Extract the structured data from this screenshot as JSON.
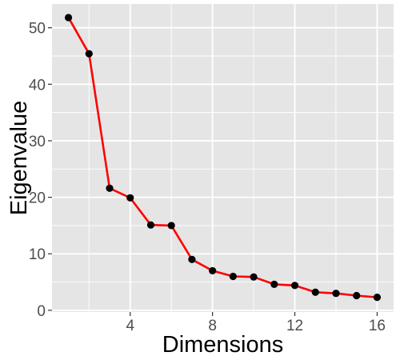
{
  "chart_data": {
    "type": "line",
    "title": "",
    "xlabel": "Dimensions",
    "ylabel": "Eigenvalue",
    "xlim": [
      0.2,
      16.8
    ],
    "ylim": [
      -0.3,
      54.2
    ],
    "xticks": [
      4,
      8,
      12,
      16
    ],
    "yticks": [
      0,
      10,
      20,
      30,
      40,
      50
    ],
    "grid": true,
    "x": [
      1,
      2,
      3,
      4,
      5,
      6,
      7,
      8,
      9,
      10,
      11,
      12,
      13,
      14,
      15,
      16
    ],
    "series": [
      {
        "values": [
          51.8,
          45.4,
          21.6,
          19.9,
          15.1,
          15.0,
          9.0,
          7.0,
          6.0,
          5.9,
          4.6,
          4.4,
          3.2,
          3.0,
          2.6,
          2.3
        ]
      }
    ],
    "colors": {
      "panel_background": "#e5e5e5",
      "grid": "#ffffff",
      "line": "#ff0000",
      "point": "#000000",
      "tick_mark": "#333333"
    }
  }
}
